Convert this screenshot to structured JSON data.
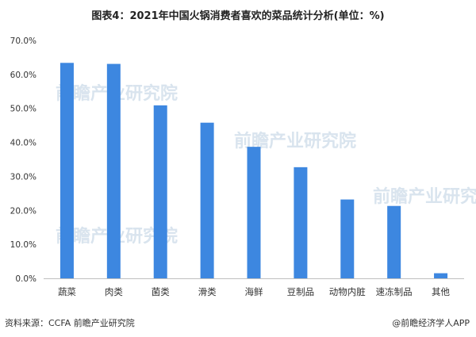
{
  "chart_data": {
    "type": "bar",
    "title": "图表4：2021年中国火锅消费者喜欢的菜品统计分析(单位：%)",
    "categories": [
      "蔬菜",
      "肉类",
      "菌类",
      "滑类",
      "海鲜",
      "豆制品",
      "动物内脏",
      "速冻制品",
      "其他"
    ],
    "values": [
      63.4,
      63.1,
      50.9,
      45.8,
      38.7,
      32.7,
      23.2,
      21.3,
      1.5
    ],
    "ylim": [
      0,
      70
    ],
    "yticks": [
      "0.0%",
      "10.0%",
      "20.0%",
      "30.0%",
      "40.0%",
      "50.0%",
      "60.0%",
      "70.0%"
    ],
    "ytick_values": [
      0,
      10,
      20,
      30,
      40,
      50,
      60,
      70
    ],
    "bar_color": "#3d87e0",
    "grid": false,
    "legend": "none"
  },
  "footer": {
    "source": "资料来源：CCFA 前瞻产业研究院",
    "credit": "@前瞻经济学人APP"
  },
  "watermark": {
    "text": "前瞻产业研究院"
  }
}
